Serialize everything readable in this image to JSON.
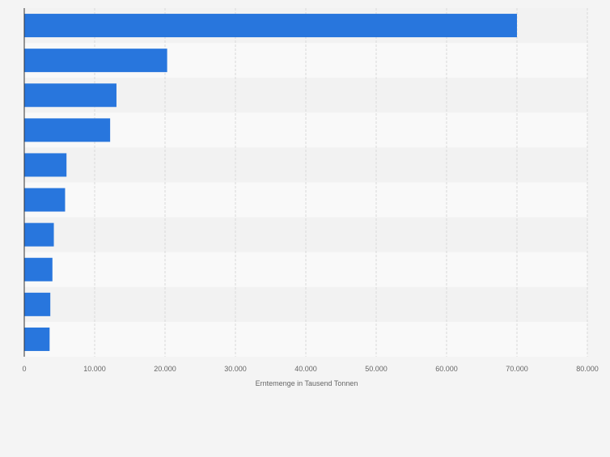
{
  "chart_data": {
    "type": "bar",
    "orientation": "horizontal",
    "values": [
      70000,
      20300,
      13100,
      12200,
      6000,
      5800,
      4200,
      4000,
      3700,
      3600
    ],
    "xlabel": "Erntemenge in Tausend Tonnen",
    "xlim": [
      0,
      80000
    ],
    "xticks": [
      "0",
      "10.000",
      "20.000",
      "30.000",
      "40.000",
      "50.000",
      "60.000",
      "70.000",
      "80.000"
    ],
    "grid": true,
    "colors": {
      "bar": "#2876dd",
      "grid": "#d9d9d9",
      "axis": "#333333",
      "tick_text": "#666666",
      "band_light": "#f9f9f9",
      "band_dark": "#f2f2f2",
      "page_background": "#f4f4f4"
    }
  }
}
